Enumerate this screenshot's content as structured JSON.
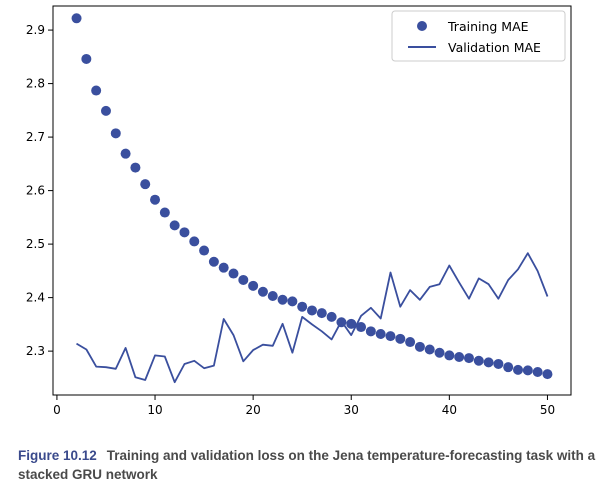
{
  "chart_data": {
    "type": "line",
    "title": "",
    "xlabel": "",
    "ylabel": "",
    "xlim": [
      -0.4,
      52.4
    ],
    "ylim": [
      2.218,
      2.945
    ],
    "x_ticks": [
      0,
      10,
      20,
      30,
      40,
      50
    ],
    "y_ticks": [
      2.3,
      2.4,
      2.5,
      2.6,
      2.7,
      2.8,
      2.9
    ],
    "grid": false,
    "legend_position": "top-right",
    "series": [
      {
        "name": "Training MAE",
        "style": "dots",
        "color": "#3a4f9e",
        "x": [
          2,
          3,
          4,
          5,
          6,
          7,
          8,
          9,
          10,
          11,
          12,
          13,
          14,
          15,
          16,
          17,
          18,
          19,
          20,
          21,
          22,
          23,
          24,
          25,
          26,
          27,
          28,
          29,
          30,
          31,
          32,
          33,
          34,
          35,
          36,
          37,
          38,
          39,
          40,
          41,
          42,
          43,
          44,
          45,
          46,
          47,
          48,
          49,
          50
        ],
        "values": [
          2.922,
          2.846,
          2.787,
          2.749,
          2.707,
          2.669,
          2.643,
          2.612,
          2.583,
          2.559,
          2.535,
          2.522,
          2.505,
          2.488,
          2.467,
          2.456,
          2.445,
          2.433,
          2.422,
          2.411,
          2.403,
          2.396,
          2.393,
          2.383,
          2.376,
          2.371,
          2.364,
          2.354,
          2.351,
          2.345,
          2.337,
          2.332,
          2.328,
          2.323,
          2.317,
          2.308,
          2.303,
          2.297,
          2.292,
          2.289,
          2.287,
          2.282,
          2.279,
          2.276,
          2.27,
          2.265,
          2.264,
          2.261,
          2.257
        ]
      },
      {
        "name": "Validation MAE",
        "style": "line",
        "color": "#3a4f9e",
        "x": [
          2,
          3,
          4,
          5,
          6,
          7,
          8,
          9,
          10,
          11,
          12,
          13,
          14,
          15,
          16,
          17,
          18,
          19,
          20,
          21,
          22,
          23,
          24,
          25,
          26,
          27,
          28,
          29,
          30,
          31,
          32,
          33,
          34,
          35,
          36,
          37,
          38,
          39,
          40,
          41,
          42,
          43,
          44,
          45,
          46,
          47,
          48,
          49,
          50
        ],
        "values": [
          2.314,
          2.303,
          2.271,
          2.27,
          2.267,
          2.306,
          2.251,
          2.246,
          2.292,
          2.29,
          2.242,
          2.276,
          2.282,
          2.268,
          2.273,
          2.36,
          2.33,
          2.281,
          2.302,
          2.312,
          2.31,
          2.351,
          2.297,
          2.364,
          2.35,
          2.337,
          2.322,
          2.356,
          2.33,
          2.366,
          2.381,
          2.361,
          2.447,
          2.383,
          2.414,
          2.396,
          2.42,
          2.425,
          2.46,
          2.428,
          2.398,
          2.436,
          2.425,
          2.398,
          2.433,
          2.453,
          2.483,
          2.45,
          2.402
        ]
      }
    ]
  },
  "caption": {
    "figure_label": "Figure 10.12",
    "text": "Training and validation loss on the Jena temperature-forecasting task with a stacked GRU network"
  }
}
